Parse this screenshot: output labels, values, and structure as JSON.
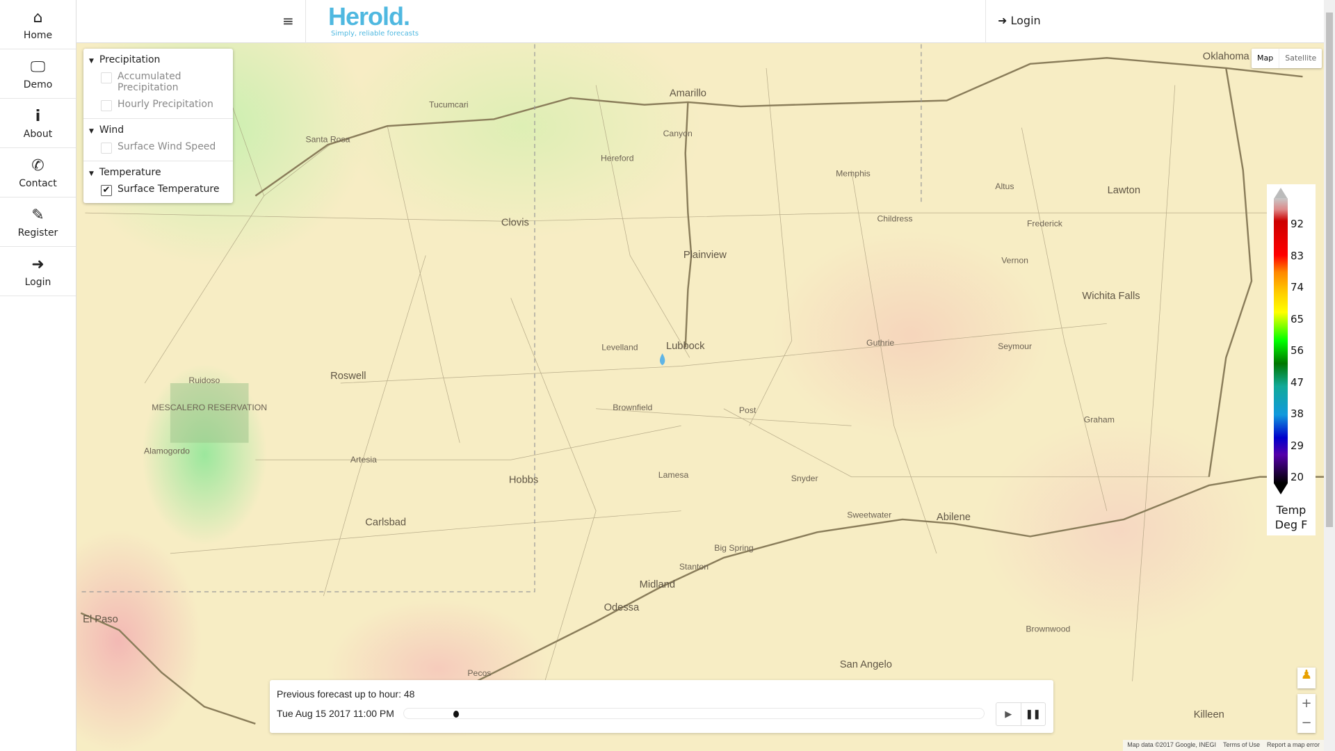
{
  "sidebar": {
    "items": [
      {
        "label": "Home",
        "icon": "home-icon",
        "glyph": "⌂"
      },
      {
        "label": "Demo",
        "icon": "monitor-icon",
        "glyph": "🖵"
      },
      {
        "label": "About",
        "icon": "info-icon",
        "glyph": "i"
      },
      {
        "label": "Contact",
        "icon": "phone-icon",
        "glyph": "✆"
      },
      {
        "label": "Register",
        "icon": "pencil-icon",
        "glyph": "✎"
      },
      {
        "label": "Login",
        "icon": "sign-in-icon",
        "glyph": "➜"
      }
    ]
  },
  "header": {
    "menu_glyph": "≡",
    "logo": "Herold.",
    "tagline": "Simply, reliable forecasts",
    "login": "Login",
    "login_glyph": "➜"
  },
  "layers": [
    {
      "title": "Precipitation",
      "items": [
        {
          "label": "Accumulated Precipitation",
          "checked": false
        },
        {
          "label": "Hourly Precipitation",
          "checked": false
        }
      ]
    },
    {
      "title": "Wind",
      "items": [
        {
          "label": "Surface Wind Speed",
          "checked": false
        }
      ]
    },
    {
      "title": "Temperature",
      "items": [
        {
          "label": "Surface Temperature",
          "checked": true
        }
      ]
    }
  ],
  "legend": {
    "ticks": [
      "92",
      "83",
      "74",
      "65",
      "56",
      "47",
      "38",
      "29",
      "20"
    ],
    "title1": "Temp",
    "title2": "Deg F"
  },
  "map_type": {
    "map": "Map",
    "satellite": "Satellite",
    "selected": "Map"
  },
  "map": {
    "cities": [
      "Amarillo",
      "Lubbock",
      "Plainview",
      "Midland",
      "Odessa",
      "Abilene",
      "Wichita Falls",
      "Lawton",
      "Oklahoma",
      "Roswell",
      "Clovis",
      "Carlsbad",
      "Hobbs",
      "El Paso",
      "San Angelo",
      "Tucumcari",
      "Santa Rosa",
      "Artesia",
      "Lamesa",
      "Big Spring",
      "Snyder",
      "Childress",
      "Altus",
      "Vernon",
      "Brownfield",
      "Levelland",
      "Hereford",
      "Canyon",
      "Guthrie",
      "Seymour",
      "Pecos",
      "Ruidoso",
      "Alamogordo",
      "Stanton",
      "Sweetwater",
      "Brownwood",
      "Killeen",
      "Frederick",
      "Memphis",
      "Post",
      "Graham",
      "MESCALERO RESERVATION"
    ]
  },
  "forecast": {
    "previous_label": "Previous forecast up to hour: 48",
    "datetime": "Tue Aug 15 2017 11:00 PM",
    "progress": 0.09,
    "play_glyph": "▶",
    "pause_glyph": "❚❚"
  },
  "attribution": {
    "data": "Map data ©2017 Google, INEGI",
    "terms": "Terms of Use",
    "report": "Report a map error"
  }
}
